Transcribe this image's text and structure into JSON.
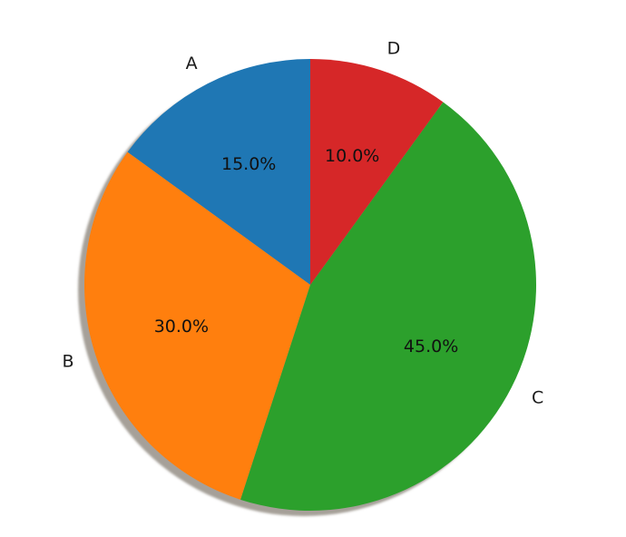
{
  "chart_data": {
    "type": "pie",
    "categories": [
      "A",
      "B",
      "C",
      "D"
    ],
    "values": [
      15,
      30,
      45,
      10
    ],
    "value_labels": [
      "15.0%",
      "30.0%",
      "45.0%",
      "10.0%"
    ],
    "colors": [
      "#1f77b4",
      "#ff7f0e",
      "#2ca02c",
      "#d62728"
    ],
    "start_angle_deg": 90,
    "direction": "counterclockwise",
    "shadow": true,
    "title": "",
    "legend": "none"
  }
}
